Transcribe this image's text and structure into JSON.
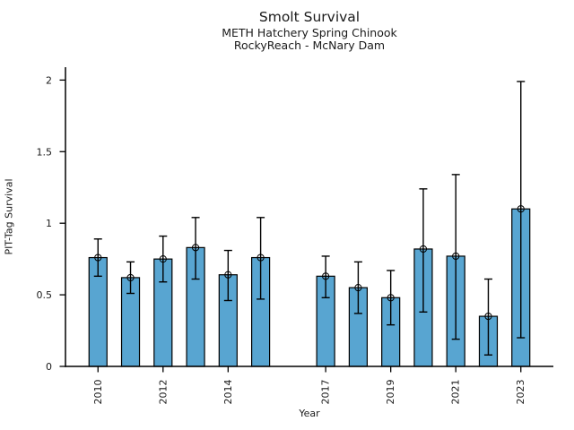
{
  "chart_data": {
    "type": "bar",
    "title": "Smolt Survival",
    "subtitle_line1": "METH Hatchery Spring Chinook",
    "subtitle_line2": "RockyReach - McNary Dam",
    "xlabel": "Year",
    "ylabel": "PIT-Tag Survival",
    "xlim": [
      2009,
      2024
    ],
    "ylim": [
      0,
      2.09
    ],
    "ytick_values": [
      0,
      0.5,
      1,
      1.5,
      2
    ],
    "ytick_labels": [
      "0",
      "0.5",
      "1",
      "1.5",
      "2"
    ],
    "xtick_years": [
      2010,
      2012,
      2014,
      2017,
      2019,
      2021,
      2023
    ],
    "grid": false,
    "legend": false,
    "bar_color": "#58a5d1",
    "bar_edge_color": "#000000",
    "error_color": "#000000",
    "points": [
      {
        "year": 2010,
        "value": 0.76,
        "ci_low": 0.63,
        "ci_high": 0.89
      },
      {
        "year": 2011,
        "value": 0.62,
        "ci_low": 0.51,
        "ci_high": 0.73
      },
      {
        "year": 2012,
        "value": 0.75,
        "ci_low": 0.59,
        "ci_high": 0.91
      },
      {
        "year": 2013,
        "value": 0.83,
        "ci_low": 0.61,
        "ci_high": 1.04
      },
      {
        "year": 2014,
        "value": 0.64,
        "ci_low": 0.46,
        "ci_high": 0.81
      },
      {
        "year": 2015,
        "value": 0.76,
        "ci_low": 0.47,
        "ci_high": 1.04
      },
      {
        "year": 2017,
        "value": 0.63,
        "ci_low": 0.48,
        "ci_high": 0.77
      },
      {
        "year": 2018,
        "value": 0.55,
        "ci_low": 0.37,
        "ci_high": 0.73
      },
      {
        "year": 2019,
        "value": 0.48,
        "ci_low": 0.29,
        "ci_high": 0.67
      },
      {
        "year": 2020,
        "value": 0.82,
        "ci_low": 0.38,
        "ci_high": 1.24
      },
      {
        "year": 2021,
        "value": 0.77,
        "ci_low": 0.19,
        "ci_high": 1.34
      },
      {
        "year": 2022,
        "value": 0.35,
        "ci_low": 0.08,
        "ci_high": 0.61
      },
      {
        "year": 2023,
        "value": 1.1,
        "ci_low": 0.2,
        "ci_high": 1.99
      }
    ]
  }
}
